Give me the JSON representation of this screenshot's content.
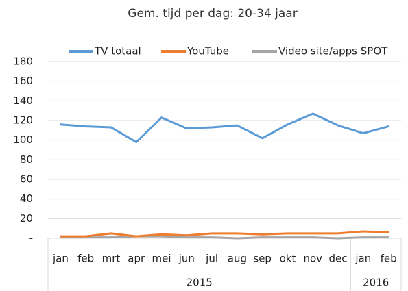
{
  "chart_data": {
    "type": "line",
    "title": "Gem. tijd per dag: 20-34 jaar",
    "categories": [
      "jan",
      "feb",
      "mrt",
      "apr",
      "mei",
      "jun",
      "jul",
      "aug",
      "sep",
      "okt",
      "nov",
      "dec",
      "jan",
      "feb"
    ],
    "category_groups": [
      {
        "label": "2015",
        "span": 12
      },
      {
        "label": "2016",
        "span": 2
      }
    ],
    "series": [
      {
        "name": "TV totaal",
        "color": "#5b9bd5",
        "values": [
          116,
          114,
          113,
          98,
          123,
          112,
          113,
          115,
          102,
          116,
          127,
          115,
          107,
          114
        ]
      },
      {
        "name": "YouTube",
        "color": "#ed7d31",
        "values": [
          2,
          2,
          5,
          2,
          4,
          3,
          5,
          5,
          4,
          5,
          5,
          5,
          7,
          6
        ]
      },
      {
        "name": "Video site/apps SPOT",
        "color": "#a5a5a5",
        "values": [
          1,
          1,
          1,
          2,
          2,
          1,
          1,
          0,
          1,
          1,
          1,
          0,
          1,
          1
        ]
      }
    ],
    "ylim": [
      0,
      180
    ],
    "yticks": [
      {
        "value": 0,
        "label": "-"
      },
      20,
      40,
      60,
      80,
      100,
      120,
      140,
      160,
      180
    ],
    "grid": true,
    "legend": "top"
  }
}
